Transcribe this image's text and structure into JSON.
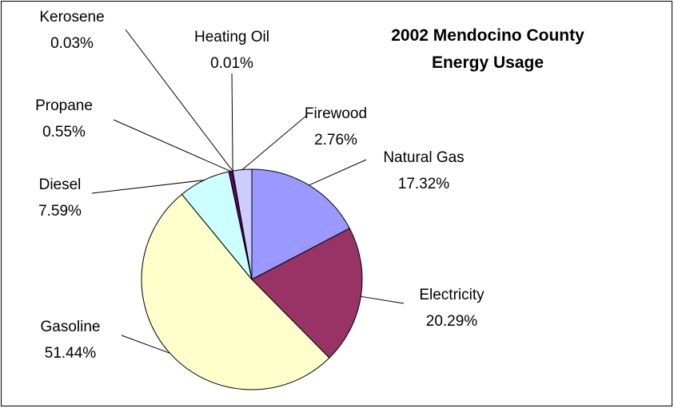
{
  "chart_data": {
    "type": "pie",
    "title": "2002 Mendocino County Energy Usage",
    "categories": [
      "Natural Gas",
      "Electricity",
      "Gasoline",
      "Diesel",
      "Propane",
      "Kerosene",
      "Heating Oil",
      "Firewood"
    ],
    "values": [
      17.32,
      20.29,
      51.44,
      7.59,
      0.55,
      0.03,
      0.01,
      2.76
    ],
    "value_labels": [
      "17.32%",
      "20.29%",
      "51.44%",
      "7.59%",
      "0.55%",
      "0.03%",
      "0.01%",
      "2.76%"
    ],
    "colors": [
      "#9999ff",
      "#993366",
      "#ffffcc",
      "#ccffff",
      "#660066",
      "#ff8080",
      "#0066cc",
      "#ccccff"
    ]
  }
}
